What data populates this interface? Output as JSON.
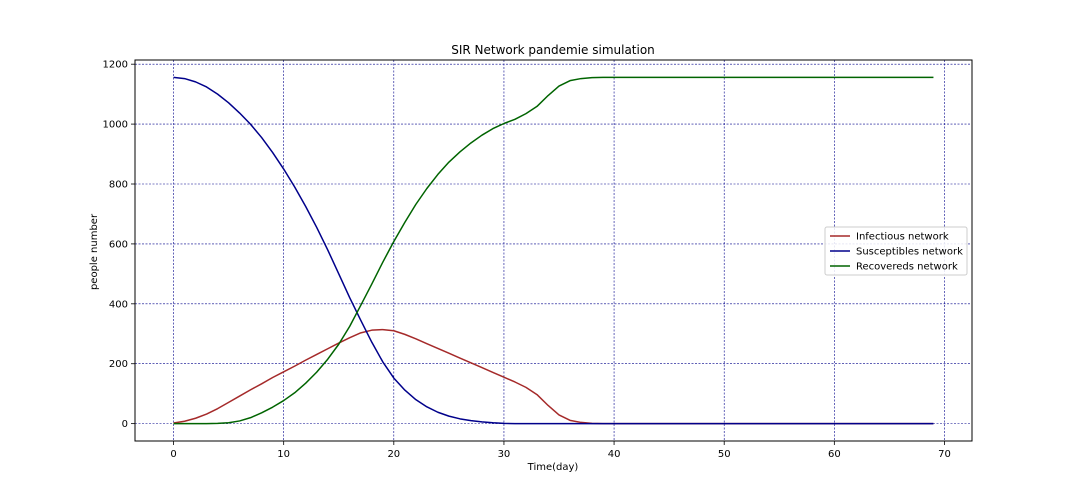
{
  "chart_data": {
    "type": "line",
    "title": "SIR Network pandemie simulation",
    "xlabel": "Time(day)",
    "ylabel": "people number",
    "xlim": [
      -3.5,
      72.5
    ],
    "ylim": [
      -58,
      1214
    ],
    "xticks": [
      0,
      10,
      20,
      30,
      40,
      50,
      60,
      70
    ],
    "yticks": [
      0,
      200,
      400,
      600,
      800,
      1000,
      1200
    ],
    "grid": true,
    "legend_position": "center-right",
    "series": [
      {
        "name": "Infectious network",
        "color": "#a52a2a",
        "x": [
          0,
          1,
          2,
          3,
          4,
          5,
          6,
          7,
          8,
          9,
          10,
          11,
          12,
          13,
          14,
          15,
          16,
          17,
          18,
          19,
          20,
          21,
          22,
          23,
          24,
          25,
          26,
          27,
          28,
          29,
          30,
          31,
          32,
          33,
          34,
          35,
          36,
          37,
          38,
          39,
          40,
          41,
          42,
          43,
          44,
          45,
          46,
          47,
          48,
          49,
          50,
          51,
          52,
          53,
          54,
          55,
          56,
          57,
          58,
          59,
          60,
          61,
          62,
          63,
          64,
          65,
          66,
          67,
          68,
          69
        ],
        "values": [
          2,
          8,
          18,
          32,
          50,
          71,
          92,
          113,
          133,
          154,
          173,
          192,
          212,
          231,
          250,
          269,
          287,
          303,
          312,
          314,
          310,
          298,
          283,
          267,
          251,
          235,
          219,
          203,
          187,
          171,
          155,
          139,
          121,
          97,
          61,
          29,
          11,
          4,
          1,
          0,
          0,
          0,
          0,
          0,
          0,
          0,
          0,
          0,
          0,
          0,
          0,
          0,
          0,
          0,
          0,
          0,
          0,
          0,
          0,
          0,
          0,
          0,
          0,
          0,
          0,
          0,
          0,
          0,
          0,
          0
        ]
      },
      {
        "name": "Susceptibles network",
        "color": "#00008b",
        "x": [
          0,
          1,
          2,
          3,
          4,
          5,
          6,
          7,
          8,
          9,
          10,
          11,
          12,
          13,
          14,
          15,
          16,
          17,
          18,
          19,
          20,
          21,
          22,
          23,
          24,
          25,
          26,
          27,
          28,
          29,
          30,
          31,
          32,
          33,
          34,
          35,
          36,
          37,
          38,
          39,
          40,
          41,
          42,
          43,
          44,
          45,
          46,
          47,
          48,
          49,
          50,
          51,
          52,
          53,
          54,
          55,
          56,
          57,
          58,
          59,
          60,
          61,
          62,
          63,
          64,
          65,
          66,
          67,
          68,
          69
        ],
        "values": [
          1156,
          1152,
          1141,
          1124,
          1100,
          1071,
          1037,
          999,
          955,
          905,
          850,
          790,
          725,
          655,
          580,
          500,
          420,
          345,
          272,
          206,
          152,
          112,
          80,
          56,
          38,
          25,
          16,
          10,
          6,
          3,
          1,
          0,
          0,
          0,
          0,
          0,
          0,
          0,
          0,
          0,
          0,
          0,
          0,
          0,
          0,
          0,
          0,
          0,
          0,
          0,
          0,
          0,
          0,
          0,
          0,
          0,
          0,
          0,
          0,
          0,
          0,
          0,
          0,
          0,
          0,
          0,
          0,
          0,
          0,
          0
        ]
      },
      {
        "name": "Recovereds network",
        "color": "#006400",
        "x": [
          0,
          1,
          2,
          3,
          4,
          5,
          6,
          7,
          8,
          9,
          10,
          11,
          12,
          13,
          14,
          15,
          16,
          17,
          18,
          19,
          20,
          21,
          22,
          23,
          24,
          25,
          26,
          27,
          28,
          29,
          30,
          31,
          32,
          33,
          34,
          35,
          36,
          37,
          38,
          39,
          40,
          41,
          42,
          43,
          44,
          45,
          46,
          47,
          48,
          49,
          50,
          51,
          52,
          53,
          54,
          55,
          56,
          57,
          58,
          59,
          60,
          61,
          62,
          63,
          64,
          65,
          66,
          67,
          68,
          69
        ],
        "values": [
          0,
          0,
          0,
          0,
          1,
          3,
          9,
          20,
          36,
          55,
          77,
          103,
          135,
          172,
          215,
          265,
          325,
          395,
          466,
          539,
          608,
          672,
          732,
          785,
          832,
          873,
          907,
          937,
          963,
          985,
          1002,
          1016,
          1035,
          1059,
          1095,
          1127,
          1145,
          1152,
          1155,
          1156,
          1156,
          1156,
          1156,
          1156,
          1156,
          1156,
          1156,
          1156,
          1156,
          1156,
          1156,
          1156,
          1156,
          1156,
          1156,
          1156,
          1156,
          1156,
          1156,
          1156,
          1156,
          1156,
          1156,
          1156,
          1156,
          1156,
          1156,
          1156,
          1156,
          1156
        ]
      }
    ]
  }
}
